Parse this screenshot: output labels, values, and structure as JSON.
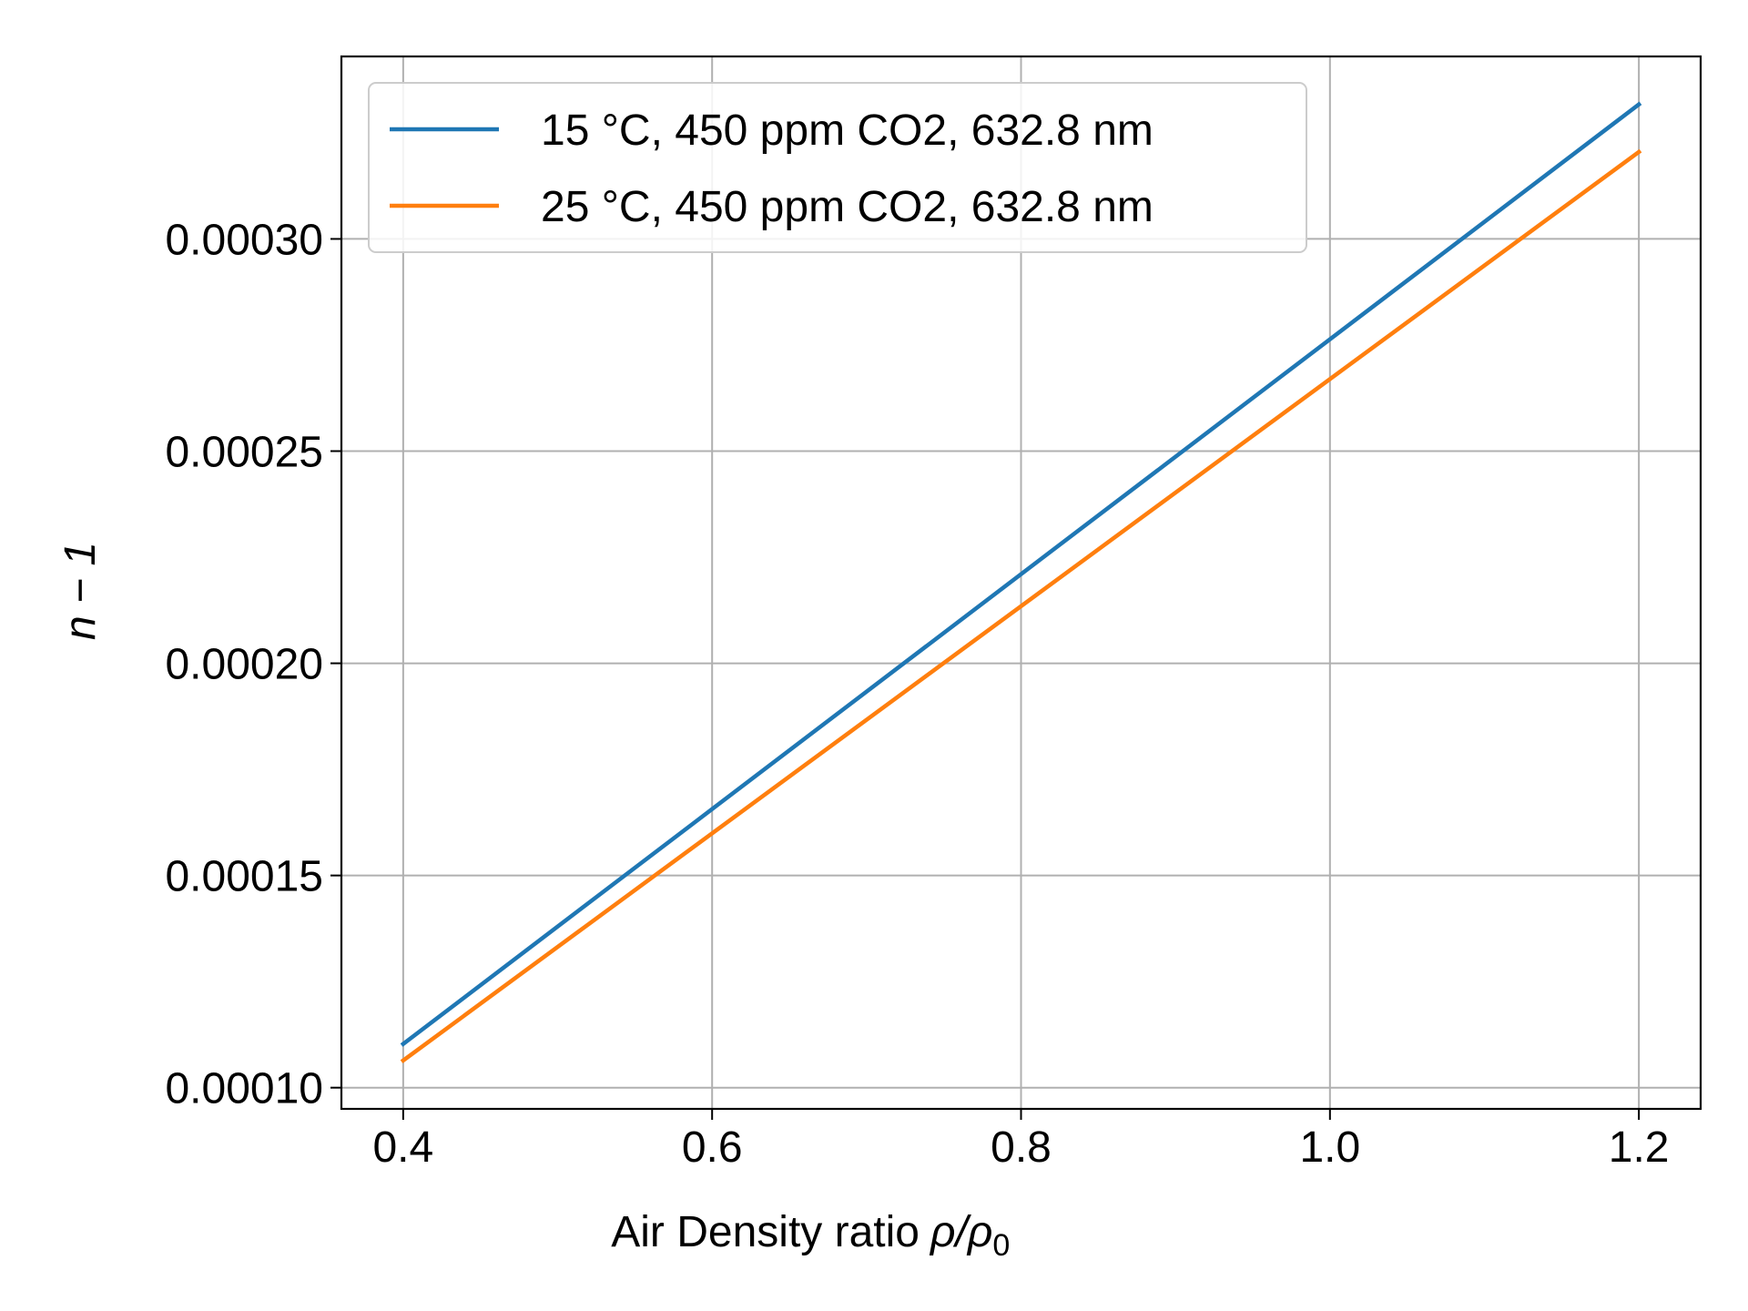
{
  "chart_data": {
    "type": "line",
    "title": "",
    "xlabel": "Air Density ratio",
    "xlabel_math": "ρ/ρ0",
    "ylabel": "n − 1",
    "xlim": [
      0.36,
      1.24
    ],
    "ylim": [
      9.5e-05,
      0.000343
    ],
    "xticks": [
      0.4,
      0.6,
      0.8,
      1.0,
      1.2
    ],
    "xtick_labels": [
      "0.4",
      "0.6",
      "0.8",
      "1.0",
      "1.2"
    ],
    "yticks": [
      0.0001,
      0.00015,
      0.0002,
      0.00025,
      0.0003
    ],
    "ytick_labels": [
      "0.00010",
      "0.00015",
      "0.00020",
      "0.00025",
      "0.00030"
    ],
    "grid": true,
    "legend_position": "top-left",
    "series": [
      {
        "name": "15 °C, 450 ppm CO2, 632.8 nm",
        "color": "#1f77b4",
        "x": [
          0.4,
          1.2
        ],
        "y": [
          0.0001103,
          0.0003317
        ]
      },
      {
        "name": "25 °C, 450 ppm CO2, 632.8 nm",
        "color": "#ff7f0e",
        "x": [
          0.4,
          1.2
        ],
        "y": [
          0.0001064,
          0.0003205
        ]
      }
    ]
  }
}
